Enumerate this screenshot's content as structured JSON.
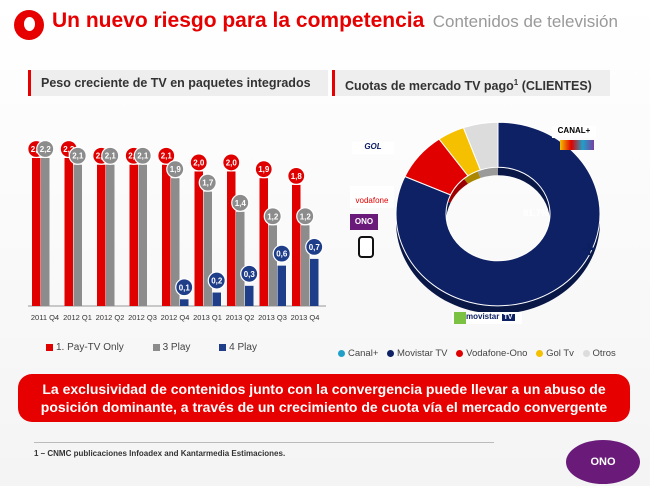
{
  "header": {
    "title": "Un nuevo riesgo para la competencia",
    "subtitle": "Contenidos de televisión"
  },
  "left_section": {
    "title": "Peso creciente de TV en paquetes integrados"
  },
  "right_section": {
    "title": "Cuotas de mercado TV pago",
    "title_sup": "1",
    "title_suffix": " (CLIENTES)"
  },
  "chart_data": [
    {
      "type": "bar",
      "categories": [
        "2011 Q4",
        "2012 Q1",
        "2012 Q2",
        "2012 Q3",
        "2012 Q4",
        "2013 Q1",
        "2013 Q2",
        "2013 Q3",
        "2013 Q4"
      ],
      "series": [
        {
          "name": "1. Pay-TV Only",
          "color": "#e00000",
          "values": [
            2.2,
            2.2,
            2.1,
            2.1,
            2.1,
            2.0,
            2.0,
            1.9,
            1.8
          ],
          "labels": [
            "2,2",
            "2,2",
            "2,1",
            "2,1",
            "2,1",
            "2,0",
            "2,0",
            "1,9",
            "1,8"
          ]
        },
        {
          "name": "3 Play",
          "color": "#8c8c8c",
          "values": [
            2.2,
            2.1,
            2.1,
            2.1,
            1.9,
            1.7,
            1.4,
            1.2,
            1.2
          ],
          "labels": [
            "2,2",
            "2,1",
            "2,1",
            "2,1",
            "1,9",
            "1,7",
            "1,4",
            "1,2",
            "1,2"
          ]
        },
        {
          "name": "4 Play",
          "color": "#1f3e8a",
          "values": [
            null,
            null,
            null,
            null,
            0.1,
            0.2,
            0.3,
            0.6,
            0.7
          ],
          "labels": [
            "",
            "",
            "",
            "",
            "0,1",
            "0,2",
            "0,3",
            "0,6",
            "0,7"
          ]
        }
      ],
      "ylim": [
        0,
        2.2
      ],
      "legend": "bottom"
    },
    {
      "type": "pie",
      "labels": [
        "Canal+",
        "Movistar TV",
        "Vodafone-Ono",
        "Gol Tv",
        "Otros"
      ],
      "values": [
        0,
        81.7,
        8.5,
        4.3,
        5.5
      ],
      "colors": [
        "#20a0c8",
        "#0e2164",
        "#e00000",
        "#f5c000",
        "#dcdcdc"
      ],
      "data_label": "81,7%",
      "legend": "bottom"
    }
  ],
  "logos": {
    "gol": "GOL",
    "canal": "CANAL+",
    "vodafone": "vodafone",
    "ono": "ONO",
    "movistar": "movistar",
    "movistar_tv": "TV"
  },
  "banner": {
    "text": "La exclusividad de contenidos junto con la convergencia puede llevar a un abuso de posición dominante, a través de un crecimiento de cuota vía el mercado convergente"
  },
  "footnote": "1 – CNMC publicaciones Infoadex and Kantarmedia Estimaciones.",
  "plus_sign": "+",
  "corner_brand": "ONO"
}
